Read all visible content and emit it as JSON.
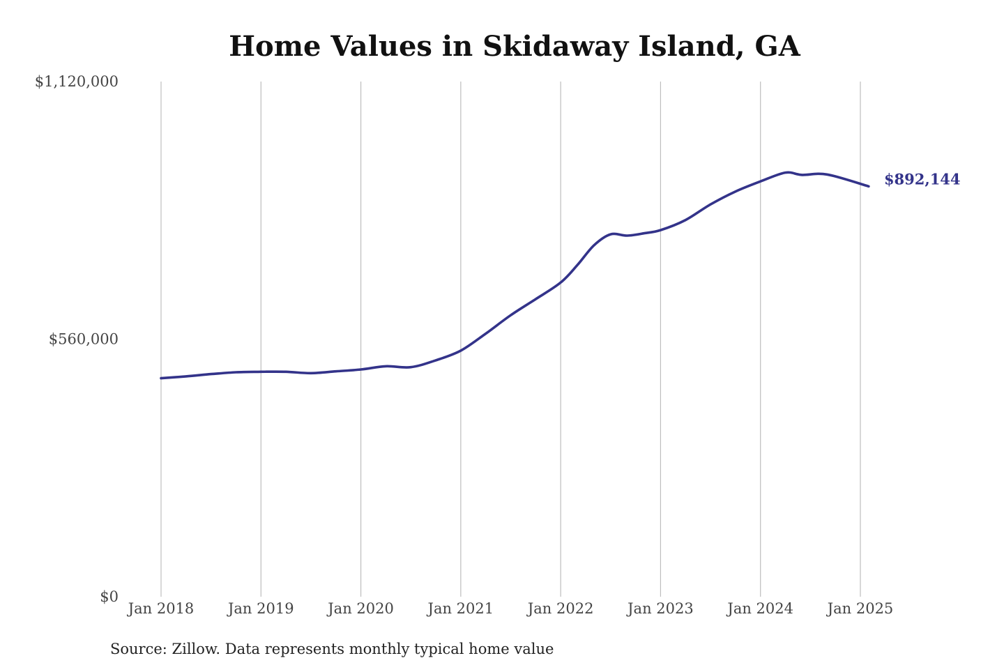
{
  "chart_data": {
    "type": "line",
    "title": "Home Values in Skidaway Island, GA",
    "xlabel": "",
    "ylabel": "",
    "source_note": "Source: Zillow. Data represents monthly typical home value",
    "ylim": [
      0,
      1120000
    ],
    "xlim": [
      "2018-01",
      "2025-02"
    ],
    "y_ticks": [
      {
        "value": 0,
        "label": "$0"
      },
      {
        "value": 560000,
        "label": "$560,000"
      },
      {
        "value": 1120000,
        "label": "$1,120,000"
      }
    ],
    "x_ticks": [
      {
        "value": "2018-01",
        "label": "Jan 2018"
      },
      {
        "value": "2019-01",
        "label": "Jan 2019"
      },
      {
        "value": "2020-01",
        "label": "Jan 2020"
      },
      {
        "value": "2021-01",
        "label": "Jan 2021"
      },
      {
        "value": "2022-01",
        "label": "Jan 2022"
      },
      {
        "value": "2023-01",
        "label": "Jan 2023"
      },
      {
        "value": "2024-01",
        "label": "Jan 2024"
      },
      {
        "value": "2025-01",
        "label": "Jan 2025"
      }
    ],
    "grid": {
      "vertical": true,
      "horizontal": false
    },
    "line_color": "#33338a",
    "end_label": "$892,144",
    "series": [
      {
        "x": [
          "2018-01",
          "2018-04",
          "2018-07",
          "2018-10",
          "2019-01",
          "2019-04",
          "2019-07",
          "2019-10",
          "2020-01",
          "2020-04",
          "2020-07",
          "2020-10",
          "2021-01",
          "2021-04",
          "2021-07",
          "2021-10",
          "2022-01",
          "2022-03",
          "2022-05",
          "2022-07",
          "2022-09",
          "2022-11",
          "2023-01",
          "2023-04",
          "2023-07",
          "2023-10",
          "2024-01",
          "2024-04",
          "2024-06",
          "2024-09",
          "2025-02"
        ],
        "y": [
          475000,
          479000,
          484000,
          488000,
          489000,
          489000,
          486000,
          490000,
          494000,
          501000,
          499000,
          514000,
          535000,
          572000,
          612000,
          647000,
          683000,
          721000,
          764000,
          788000,
          785000,
          790000,
          797000,
          819000,
          853000,
          881000,
          903000,
          922000,
          917000,
          918000,
          892144
        ]
      }
    ]
  }
}
